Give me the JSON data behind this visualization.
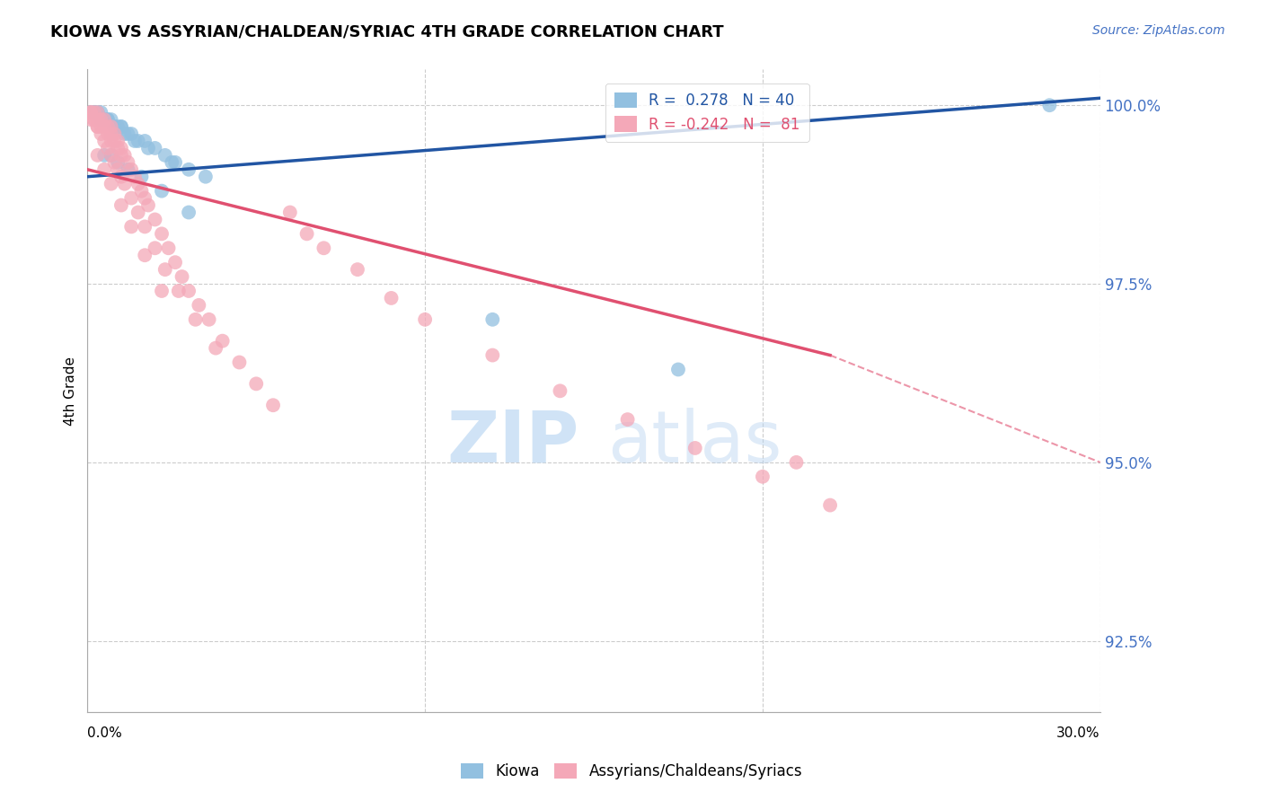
{
  "title": "KIOWA VS ASSYRIAN/CHALDEAN/SYRIAC 4TH GRADE CORRELATION CHART",
  "source": "Source: ZipAtlas.com",
  "ylabel": "4th Grade",
  "ylabel_right_labels": [
    "100.0%",
    "97.5%",
    "95.0%",
    "92.5%"
  ],
  "ylabel_right_values": [
    1.0,
    0.975,
    0.95,
    0.925
  ],
  "legend_blue_label": "R =  0.278   N = 40",
  "legend_pink_label": "R = -0.242   N =  81",
  "blue_color": "#92c0e0",
  "pink_color": "#f4a8b8",
  "blue_line_color": "#2155a3",
  "pink_line_color": "#e05070",
  "xlim": [
    0.0,
    0.3
  ],
  "ylim": [
    0.915,
    1.005
  ],
  "blue_line_x0": 0.0,
  "blue_line_y0": 0.99,
  "blue_line_x1": 0.3,
  "blue_line_y1": 1.001,
  "pink_line_x0": 0.0,
  "pink_line_y0": 0.991,
  "pink_line_solid_x1": 0.22,
  "pink_line_solid_y1": 0.965,
  "pink_line_dash_x1": 0.3,
  "pink_line_dash_y1": 0.95,
  "blue_x": [
    0.001,
    0.002,
    0.003,
    0.004,
    0.004,
    0.005,
    0.006,
    0.007,
    0.008,
    0.009,
    0.01,
    0.011,
    0.012,
    0.013,
    0.015,
    0.017,
    0.02,
    0.023,
    0.026,
    0.03,
    0.002,
    0.003,
    0.005,
    0.006,
    0.008,
    0.01,
    0.014,
    0.018,
    0.025,
    0.035,
    0.005,
    0.007,
    0.009,
    0.012,
    0.016,
    0.022,
    0.03,
    0.12,
    0.175,
    0.285
  ],
  "blue_y": [
    0.999,
    0.999,
    0.999,
    0.999,
    0.998,
    0.998,
    0.998,
    0.998,
    0.997,
    0.997,
    0.997,
    0.996,
    0.996,
    0.996,
    0.995,
    0.995,
    0.994,
    0.993,
    0.992,
    0.991,
    0.999,
    0.999,
    0.998,
    0.998,
    0.997,
    0.997,
    0.995,
    0.994,
    0.992,
    0.99,
    0.993,
    0.993,
    0.992,
    0.991,
    0.99,
    0.988,
    0.985,
    0.97,
    0.963,
    1.0
  ],
  "pink_x": [
    0.001,
    0.001,
    0.002,
    0.002,
    0.003,
    0.003,
    0.003,
    0.004,
    0.004,
    0.005,
    0.005,
    0.006,
    0.006,
    0.007,
    0.007,
    0.007,
    0.008,
    0.008,
    0.009,
    0.009,
    0.01,
    0.01,
    0.011,
    0.012,
    0.013,
    0.014,
    0.015,
    0.016,
    0.017,
    0.018,
    0.02,
    0.022,
    0.024,
    0.026,
    0.028,
    0.03,
    0.033,
    0.036,
    0.04,
    0.045,
    0.05,
    0.055,
    0.06,
    0.065,
    0.07,
    0.08,
    0.09,
    0.1,
    0.12,
    0.14,
    0.16,
    0.18,
    0.2,
    0.22,
    0.001,
    0.002,
    0.003,
    0.004,
    0.005,
    0.006,
    0.007,
    0.008,
    0.009,
    0.01,
    0.011,
    0.013,
    0.015,
    0.017,
    0.02,
    0.023,
    0.027,
    0.032,
    0.038,
    0.003,
    0.005,
    0.007,
    0.01,
    0.013,
    0.017,
    0.022,
    0.21
  ],
  "pink_y": [
    0.999,
    0.998,
    0.999,
    0.998,
    0.999,
    0.998,
    0.997,
    0.998,
    0.997,
    0.998,
    0.997,
    0.997,
    0.996,
    0.997,
    0.996,
    0.995,
    0.996,
    0.995,
    0.995,
    0.994,
    0.994,
    0.993,
    0.993,
    0.992,
    0.991,
    0.99,
    0.989,
    0.988,
    0.987,
    0.986,
    0.984,
    0.982,
    0.98,
    0.978,
    0.976,
    0.974,
    0.972,
    0.97,
    0.967,
    0.964,
    0.961,
    0.958,
    0.985,
    0.982,
    0.98,
    0.977,
    0.973,
    0.97,
    0.965,
    0.96,
    0.956,
    0.952,
    0.948,
    0.944,
    0.999,
    0.998,
    0.997,
    0.996,
    0.995,
    0.994,
    0.993,
    0.992,
    0.991,
    0.99,
    0.989,
    0.987,
    0.985,
    0.983,
    0.98,
    0.977,
    0.974,
    0.97,
    0.966,
    0.993,
    0.991,
    0.989,
    0.986,
    0.983,
    0.979,
    0.974,
    0.95
  ]
}
